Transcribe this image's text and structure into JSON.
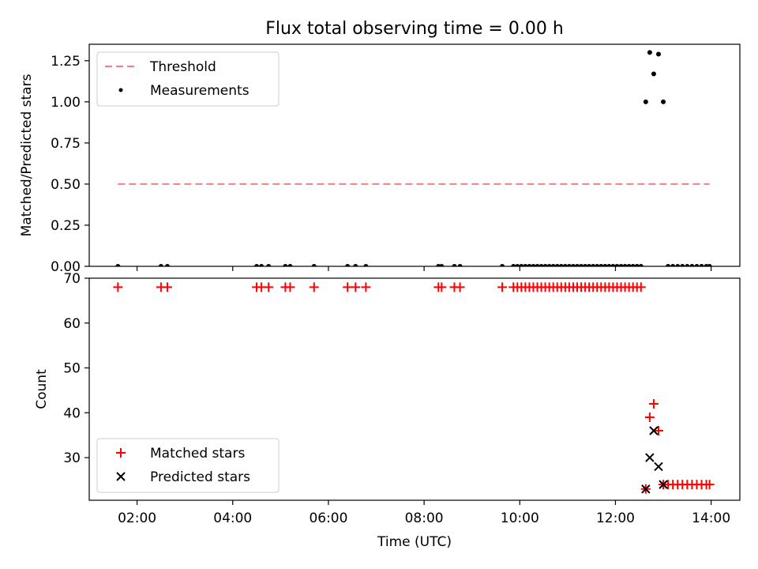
{
  "figure": {
    "title": "Flux total observing time = 0.00 h"
  },
  "chart_data": [
    {
      "type": "scatter",
      "title": "Flux total observing time = 0.00 h",
      "xlabel": "",
      "ylabel": "Matched/Predicted stars",
      "xlim": [
        "01:00",
        "14:36"
      ],
      "ylim": [
        0,
        1.35
      ],
      "yticks": [
        "0.00",
        "0.25",
        "0.50",
        "0.75",
        "1.00",
        "1.25"
      ],
      "legend": {
        "position": "upper-left",
        "entries": [
          "Threshold",
          "Measurements"
        ]
      },
      "threshold": {
        "name": "Threshold",
        "value": 0.5,
        "x_range": [
          "01:36",
          "13:58"
        ],
        "color": "#f08080"
      },
      "series": [
        {
          "name": "Measurements",
          "color": "#000000",
          "points": [
            [
              "01:36",
              0
            ],
            [
              "02:30",
              0
            ],
            [
              "02:38",
              0
            ],
            [
              "04:30",
              0
            ],
            [
              "04:36",
              0
            ],
            [
              "04:45",
              0
            ],
            [
              "05:06",
              0
            ],
            [
              "05:12",
              0
            ],
            [
              "05:42",
              0
            ],
            [
              "06:24",
              0
            ],
            [
              "06:34",
              0
            ],
            [
              "06:47",
              0
            ],
            [
              "08:18",
              0
            ],
            [
              "08:22",
              0
            ],
            [
              "08:38",
              0
            ],
            [
              "08:45",
              0
            ],
            [
              "09:38",
              0
            ],
            [
              "09:52",
              0
            ],
            [
              "09:57",
              0
            ],
            [
              "10:02",
              0
            ],
            [
              "10:07",
              0
            ],
            [
              "10:12",
              0
            ],
            [
              "10:17",
              0
            ],
            [
              "10:22",
              0
            ],
            [
              "10:27",
              0
            ],
            [
              "10:32",
              0
            ],
            [
              "10:37",
              0
            ],
            [
              "10:42",
              0
            ],
            [
              "10:47",
              0
            ],
            [
              "10:52",
              0
            ],
            [
              "10:57",
              0
            ],
            [
              "11:02",
              0
            ],
            [
              "11:07",
              0
            ],
            [
              "11:12",
              0
            ],
            [
              "11:17",
              0
            ],
            [
              "11:22",
              0
            ],
            [
              "11:27",
              0
            ],
            [
              "11:32",
              0
            ],
            [
              "11:37",
              0
            ],
            [
              "11:42",
              0
            ],
            [
              "11:47",
              0
            ],
            [
              "11:52",
              0
            ],
            [
              "11:57",
              0
            ],
            [
              "12:02",
              0
            ],
            [
              "12:07",
              0
            ],
            [
              "12:12",
              0
            ],
            [
              "12:17",
              0
            ],
            [
              "12:22",
              0
            ],
            [
              "12:27",
              0
            ],
            [
              "12:32",
              0
            ],
            [
              "12:38",
              1.0
            ],
            [
              "12:43",
              1.3
            ],
            [
              "12:48",
              1.17
            ],
            [
              "12:54",
              1.29
            ],
            [
              "13:00",
              1.0
            ],
            [
              "13:06",
              0
            ],
            [
              "13:12",
              0
            ],
            [
              "13:18",
              0
            ],
            [
              "13:24",
              0
            ],
            [
              "13:30",
              0
            ],
            [
              "13:36",
              0
            ],
            [
              "13:42",
              0
            ],
            [
              "13:48",
              0
            ],
            [
              "13:54",
              0
            ],
            [
              "13:58",
              0
            ]
          ]
        }
      ]
    },
    {
      "type": "scatter",
      "title": "",
      "xlabel": "Time (UTC)",
      "ylabel": "Count",
      "xlim": [
        "01:00",
        "14:36"
      ],
      "ylim": [
        20.5,
        70
      ],
      "yticks": [
        "30",
        "40",
        "50",
        "60",
        "70"
      ],
      "xticks": [
        "02:00",
        "04:00",
        "06:00",
        "08:00",
        "10:00",
        "12:00",
        "14:00"
      ],
      "legend": {
        "position": "lower-left",
        "entries": [
          "Matched stars",
          "Predicted stars"
        ]
      },
      "series": [
        {
          "name": "Matched stars",
          "marker": "plus",
          "color": "#ff0000",
          "points": [
            [
              "01:36",
              68
            ],
            [
              "02:30",
              68
            ],
            [
              "02:38",
              68
            ],
            [
              "04:30",
              68
            ],
            [
              "04:36",
              68
            ],
            [
              "04:45",
              68
            ],
            [
              "05:06",
              68
            ],
            [
              "05:12",
              68
            ],
            [
              "05:42",
              68
            ],
            [
              "06:24",
              68
            ],
            [
              "06:34",
              68
            ],
            [
              "06:47",
              68
            ],
            [
              "08:18",
              68
            ],
            [
              "08:22",
              68
            ],
            [
              "08:38",
              68
            ],
            [
              "08:45",
              68
            ],
            [
              "09:38",
              68
            ],
            [
              "09:52",
              68
            ],
            [
              "09:57",
              68
            ],
            [
              "10:02",
              68
            ],
            [
              "10:07",
              68
            ],
            [
              "10:12",
              68
            ],
            [
              "10:17",
              68
            ],
            [
              "10:22",
              68
            ],
            [
              "10:27",
              68
            ],
            [
              "10:32",
              68
            ],
            [
              "10:37",
              68
            ],
            [
              "10:42",
              68
            ],
            [
              "10:47",
              68
            ],
            [
              "10:52",
              68
            ],
            [
              "10:57",
              68
            ],
            [
              "11:02",
              68
            ],
            [
              "11:07",
              68
            ],
            [
              "11:12",
              68
            ],
            [
              "11:17",
              68
            ],
            [
              "11:22",
              68
            ],
            [
              "11:27",
              68
            ],
            [
              "11:32",
              68
            ],
            [
              "11:37",
              68
            ],
            [
              "11:42",
              68
            ],
            [
              "11:47",
              68
            ],
            [
              "11:52",
              68
            ],
            [
              "11:57",
              68
            ],
            [
              "12:02",
              68
            ],
            [
              "12:07",
              68
            ],
            [
              "12:12",
              68
            ],
            [
              "12:17",
              68
            ],
            [
              "12:22",
              68
            ],
            [
              "12:27",
              68
            ],
            [
              "12:32",
              68
            ],
            [
              "12:38",
              23
            ],
            [
              "12:43",
              39
            ],
            [
              "12:48",
              42
            ],
            [
              "12:54",
              36
            ],
            [
              "13:00",
              24
            ],
            [
              "13:06",
              24
            ],
            [
              "13:12",
              24
            ],
            [
              "13:18",
              24
            ],
            [
              "13:24",
              24
            ],
            [
              "13:30",
              24
            ],
            [
              "13:36",
              24
            ],
            [
              "13:42",
              24
            ],
            [
              "13:48",
              24
            ],
            [
              "13:54",
              24
            ],
            [
              "13:58",
              24
            ]
          ]
        },
        {
          "name": "Predicted stars",
          "marker": "x",
          "color": "#000000",
          "points": [
            [
              "12:38",
              23
            ],
            [
              "12:43",
              30
            ],
            [
              "12:48",
              36
            ],
            [
              "12:54",
              28
            ],
            [
              "13:00",
              24
            ]
          ]
        }
      ]
    }
  ]
}
